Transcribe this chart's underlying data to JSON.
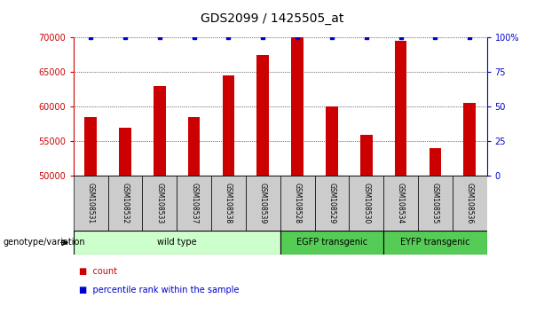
{
  "title": "GDS2099 / 1425505_at",
  "samples": [
    "GSM108531",
    "GSM108532",
    "GSM108533",
    "GSM108537",
    "GSM108538",
    "GSM108539",
    "GSM108528",
    "GSM108529",
    "GSM108530",
    "GSM108534",
    "GSM108535",
    "GSM108536"
  ],
  "counts": [
    58500,
    57000,
    63000,
    58500,
    64500,
    67500,
    70000,
    60000,
    56000,
    69500,
    54000,
    60500
  ],
  "percentiles": [
    100,
    100,
    100,
    100,
    100,
    100,
    100,
    100,
    100,
    100,
    100,
    100
  ],
  "bar_color": "#CC0000",
  "dot_color": "#0000CC",
  "ylim_left": [
    50000,
    70000
  ],
  "ylim_right": [
    0,
    100
  ],
  "yticks_left": [
    50000,
    55000,
    60000,
    65000,
    70000
  ],
  "yticks_right": [
    0,
    25,
    50,
    75,
    100
  ],
  "ytick_labels_right": [
    "0",
    "25",
    "50",
    "75",
    "100%"
  ],
  "groups": [
    {
      "label": "wild type",
      "start": 0,
      "end": 6,
      "color": "#ccffcc"
    },
    {
      "label": "EGFP transgenic",
      "start": 6,
      "end": 9,
      "color": "#55cc55"
    },
    {
      "label": "EYFP transgenic",
      "start": 9,
      "end": 12,
      "color": "#55cc55"
    }
  ],
  "xlabel_group": "genotype/variation",
  "legend_count_label": "count",
  "legend_percentile_label": "percentile rank within the sample",
  "tick_bg_color": "#cccccc",
  "title_fontsize": 10,
  "bar_width": 0.35
}
